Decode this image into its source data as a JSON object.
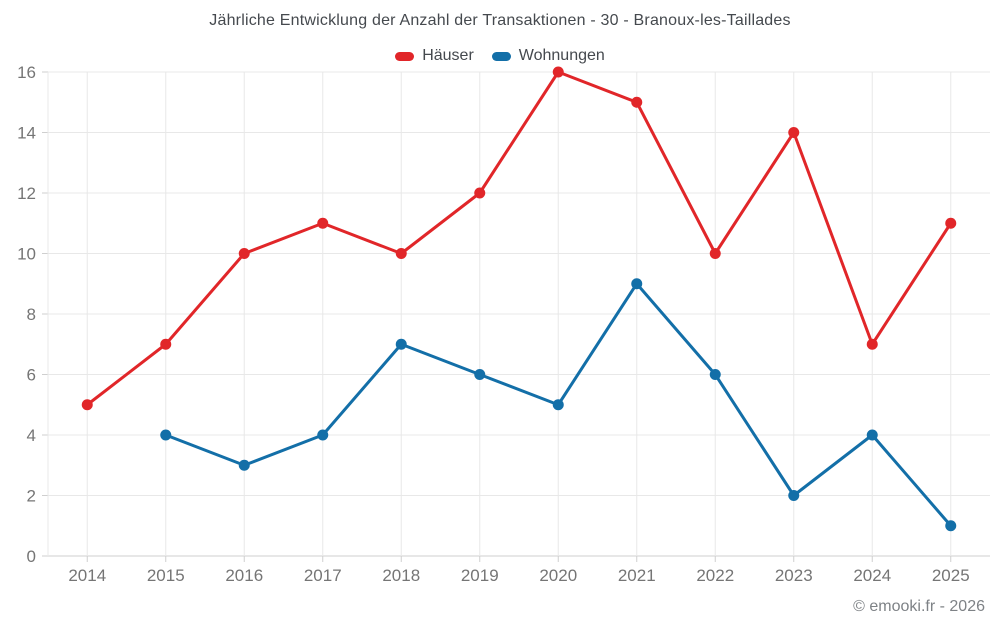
{
  "chart_data": {
    "type": "line",
    "title": "Jährliche Entwicklung der Anzahl der Transaktionen - 30 - Branoux-les-Taillades",
    "categories": [
      "2014",
      "2015",
      "2016",
      "2017",
      "2018",
      "2019",
      "2020",
      "2021",
      "2022",
      "2023",
      "2024",
      "2025"
    ],
    "series": [
      {
        "name": "Häuser",
        "color": "#e12629",
        "values": [
          5,
          7,
          10,
          11,
          10,
          12,
          16,
          15,
          10,
          14,
          7,
          11
        ]
      },
      {
        "name": "Wohnungen",
        "color": "#136fa8",
        "values": [
          null,
          4,
          3,
          4,
          7,
          6,
          5,
          9,
          6,
          2,
          4,
          1
        ]
      }
    ],
    "ylim": [
      0,
      16
    ],
    "yticks": [
      0,
      2,
      4,
      6,
      8,
      10,
      12,
      14,
      16
    ],
    "grid": true,
    "legend_position": "top-center",
    "title_color": "#45494e",
    "axis_label_color": "#757575",
    "grid_color": "#e8e8e8",
    "axis_line_color": "#cfcfcf",
    "marker_radius": 5.5,
    "line_width": 3
  },
  "footer": {
    "text": "© emooki.fr - 2026"
  }
}
